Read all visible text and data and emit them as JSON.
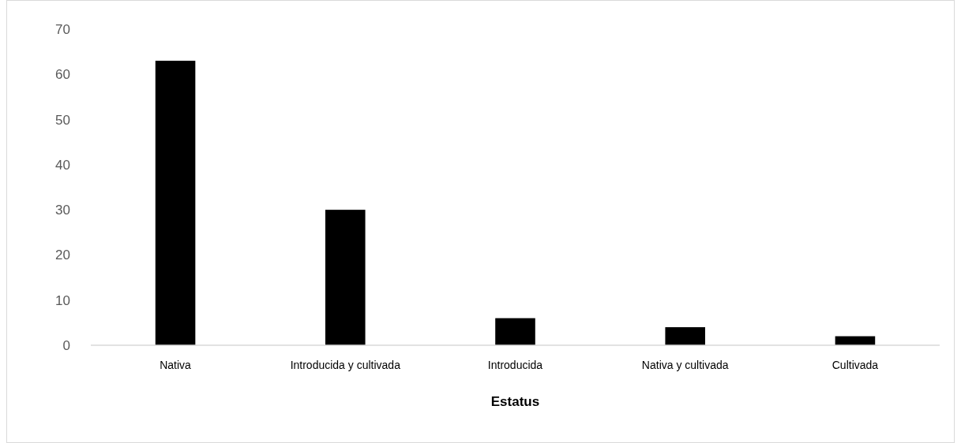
{
  "chart_data": {
    "type": "bar",
    "xlabel": "Estatus",
    "categories": [
      "Nativa",
      "Introducida y cultivada",
      "Introducida",
      "Nativa y cultivada",
      "Cultivada"
    ],
    "values": [
      63,
      30,
      6,
      4,
      2
    ],
    "color": "#000000",
    "ylim": [
      0,
      70
    ],
    "yticks": [
      0,
      10,
      20,
      30,
      40,
      50,
      60,
      70
    ]
  }
}
